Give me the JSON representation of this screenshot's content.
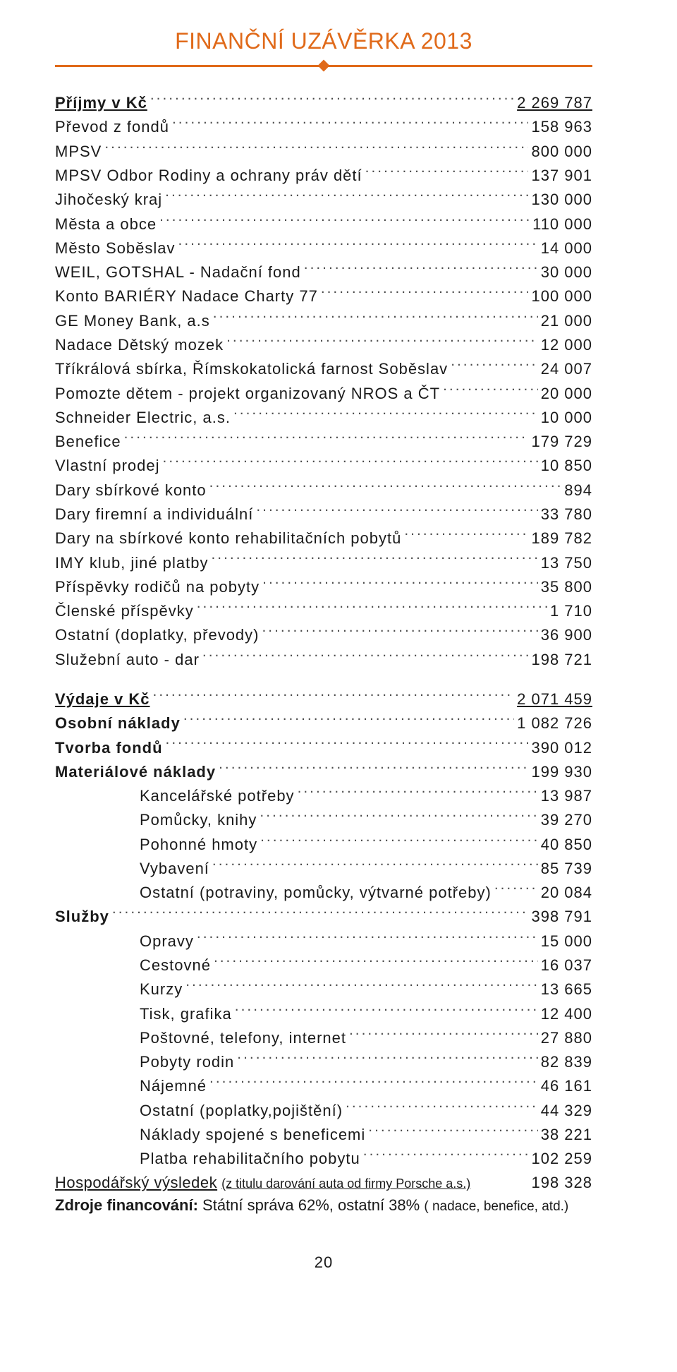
{
  "title": "FINANČNÍ UZÁVĚRKA 2013",
  "colors": {
    "accent": "#e06a1a",
    "text": "#1a1a1a"
  },
  "income_header": {
    "label": "Příjmy v Kč",
    "value": "2 269 787"
  },
  "income": [
    {
      "label": "Převod z fondů",
      "value": "158 963"
    },
    {
      "label": "MPSV",
      "value": "800 000"
    },
    {
      "label": "MPSV Odbor Rodiny a ochrany práv dětí",
      "value": "137 901"
    },
    {
      "label": "Jihočeský kraj",
      "value": "130 000"
    },
    {
      "label": "Města a obce",
      "value": "110 000"
    },
    {
      "label": "Město Soběslav",
      "value": "14 000"
    },
    {
      "label": "WEIL, GOTSHAL - Nadační fond",
      "value": "30 000"
    },
    {
      "label": "Konto BARIÉRY Nadace Charty 77",
      "value": "100 000"
    },
    {
      "label": "GE Money Bank, a.s",
      "value": "21 000"
    },
    {
      "label": "Nadace Dětský mozek",
      "value": "12 000"
    },
    {
      "label": "Tříkrálová sbírka, Římskokatolická farnost Soběslav",
      "value": "24 007"
    },
    {
      "label": "Pomozte dětem - projekt organizovaný NROS a ČT",
      "value": "20 000"
    },
    {
      "label": "Schneider Electric, a.s.",
      "value": "10 000"
    },
    {
      "label": "Benefice",
      "value": "179 729"
    },
    {
      "label": "Vlastní prodej",
      "value": "10 850"
    },
    {
      "label": "Dary  sbírkové konto",
      "value": "894"
    },
    {
      "label": "Dary firemní a individuální",
      "value": "33 780"
    },
    {
      "label": "Dary na sbírkové konto rehabilitačních pobytů",
      "value": "189 782"
    },
    {
      "label": "IMY klub, jiné platby",
      "value": "13 750"
    },
    {
      "label": "Příspěvky rodičů na pobyty",
      "value": "35 800"
    },
    {
      "label": "Členské příspěvky",
      "value": "1 710"
    },
    {
      "label": "Ostatní (doplatky, převody)",
      "value": "36 900"
    },
    {
      "label": "Služební auto - dar",
      "value": "198 721"
    }
  ],
  "expense_rows": [
    {
      "label": "Výdaje v Kč",
      "value": "2 071 459",
      "bold": true,
      "underline": true,
      "indent": false
    },
    {
      "label": "Osobní náklady",
      "value": "1 082 726",
      "bold": true,
      "indent": false
    },
    {
      "label": "Tvorba  fondů",
      "value": "390 012",
      "bold": true,
      "indent": false
    },
    {
      "label": "Materiálové náklady",
      "value": "199 930",
      "bold": true,
      "indent": false
    },
    {
      "label": "Kancelářské potřeby",
      "value": "13 987",
      "indent": true
    },
    {
      "label": "Pomůcky, knihy",
      "value": "39 270",
      "indent": true
    },
    {
      "label": "Pohonné hmoty",
      "value": "40 850",
      "indent": true
    },
    {
      "label": "Vybavení",
      "value": "85 739",
      "indent": true
    },
    {
      "label": "Ostatní (potraviny, pomůcky, výtvarné potřeby)",
      "value": "20 084",
      "indent": true
    },
    {
      "label": "Služby",
      "value": "398 791",
      "bold": true,
      "indent": false
    },
    {
      "label": "Opravy",
      "value": "15 000",
      "indent": true
    },
    {
      "label": "Cestovné",
      "value": "16 037",
      "indent": true
    },
    {
      "label": "Kurzy",
      "value": "13 665",
      "indent": true
    },
    {
      "label": "Tisk, grafika",
      "value": "12 400",
      "indent": true
    },
    {
      "label": "Poštovné, telefony, internet",
      "value": "27 880",
      "indent": true
    },
    {
      "label": "Pobyty rodin",
      "value": "82 839",
      "indent": true
    },
    {
      "label": "Nájemné",
      "value": "46 161",
      "indent": true
    },
    {
      "label": "Ostatní (poplatky,pojištění)",
      "value": "44 329",
      "indent": true
    },
    {
      "label": "Náklady spojené s beneficemi",
      "value": "38 221",
      "indent": true
    },
    {
      "label": "Platba rehabilitačního pobytu",
      "value": "102 259",
      "indent": true
    }
  ],
  "result": {
    "lead": "Hospodářský výsledek",
    "note": "(z titulu darování auta od firmy Porsche a.s.)",
    "value": "198 328"
  },
  "sources": {
    "lead": "Zdroje financování:",
    "rest": " Státní správa 62%, ostatní 38% ",
    "small": "( nadace, benefice, atd.)"
  },
  "page_number": "20"
}
